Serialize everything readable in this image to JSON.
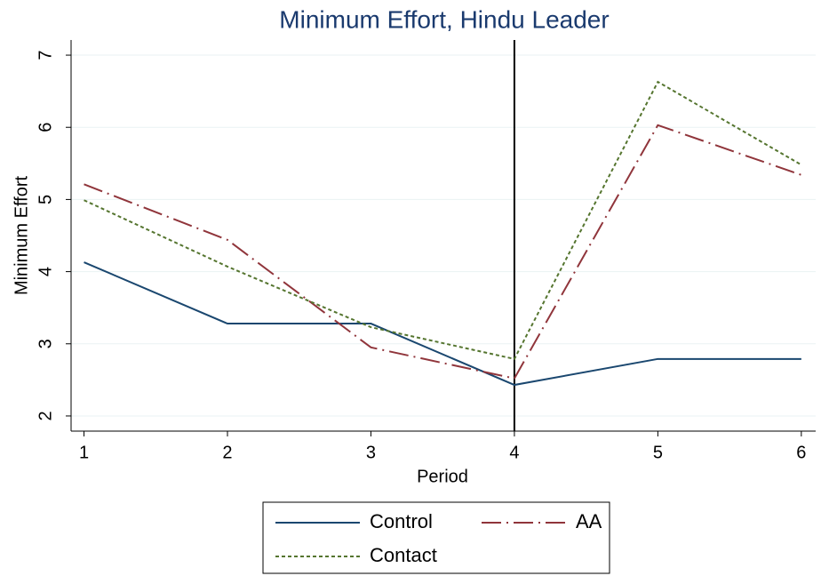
{
  "chart_data": {
    "type": "line",
    "title": "Minimum Effort, Hindu Leader",
    "xlabel": "Period",
    "ylabel": "Minimum Effort",
    "x": [
      1,
      2,
      3,
      4,
      5,
      6
    ],
    "series": [
      {
        "name": "Control",
        "color": "#1a476f",
        "dash": "none",
        "values": [
          4.13,
          3.28,
          3.28,
          2.43,
          2.79,
          2.79
        ]
      },
      {
        "name": "AA",
        "color": "#90353b",
        "dash": "22 6 2 6",
        "values": [
          5.21,
          4.44,
          2.95,
          2.52,
          6.03,
          5.34
        ]
      },
      {
        "name": "Contact",
        "color": "#55752f",
        "dash": "4 3",
        "values": [
          4.99,
          4.07,
          3.23,
          2.79,
          6.63,
          5.48
        ]
      }
    ],
    "xlim": [
      0.91,
      6.1
    ],
    "xticks": [
      1,
      2,
      3,
      4,
      5,
      6
    ],
    "ylim": [
      1.79,
      7.21
    ],
    "yticks": [
      2,
      3,
      4,
      5,
      6,
      7
    ],
    "grid": true,
    "vline": 4,
    "legend": "bottom"
  }
}
